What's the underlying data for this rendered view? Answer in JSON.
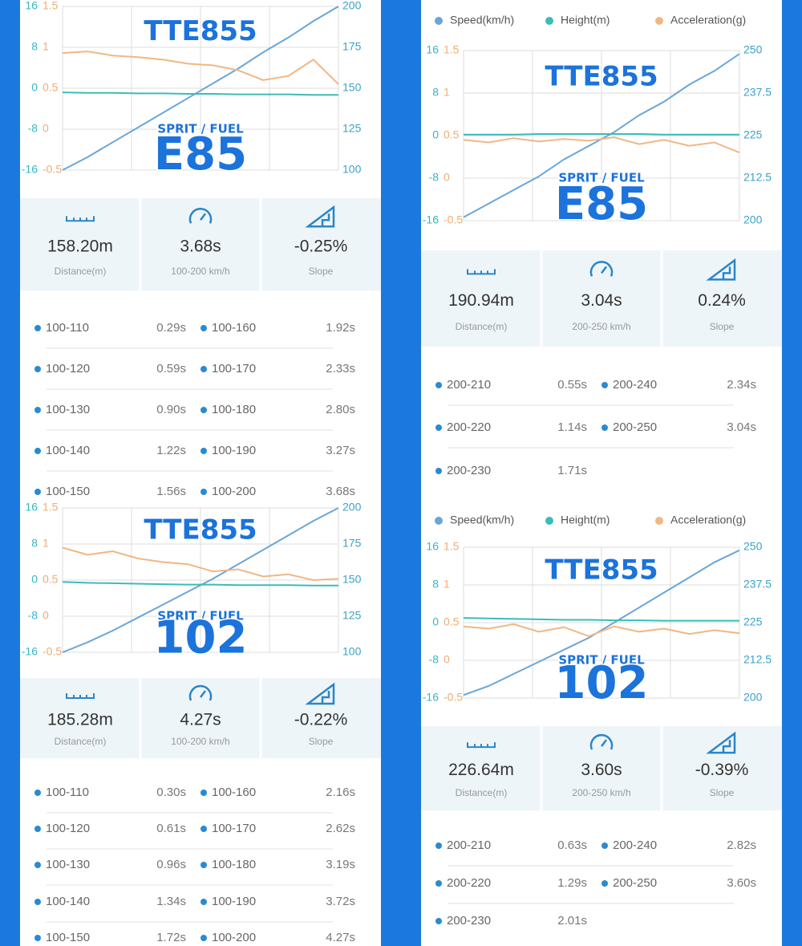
{
  "panels": [
    {
      "chart": {
        "type": "line",
        "height_lim": [
          -16,
          16
        ],
        "height_ticks": [
          16,
          8,
          0,
          -8,
          -16
        ],
        "accel_lim": [
          -0.5,
          1.5
        ],
        "accel_ticks": [
          1.5,
          1,
          0.5,
          0,
          -0.5
        ],
        "speed_lim": [
          100,
          200
        ],
        "speed_ticks": [
          200,
          175,
          150,
          125,
          100
        ],
        "series": [
          {
            "color": "#6aa6d8",
            "axis": "speed",
            "values": [
              100,
              108,
              117,
              126,
              135,
              144,
              153,
              162,
              172,
              181,
              191,
              200
            ]
          },
          {
            "color": "#3bbcb8",
            "axis": "height",
            "values": [
              -0.8,
              -0.9,
              -0.9,
              -1,
              -1,
              -1.1,
              -1.1,
              -1.2,
              -1.2,
              -1.2,
              -1.3,
              -1.3
            ]
          },
          {
            "color": "#f0b784",
            "axis": "accel",
            "values": [
              0.93,
              0.95,
              0.9,
              0.88,
              0.85,
              0.8,
              0.78,
              0.72,
              0.6,
              0.65,
              0.85,
              0.55
            ]
          }
        ]
      },
      "overlay": {
        "model": "TTE855",
        "fuel_label": "SPRIT / FUEL",
        "fuel": "E85"
      },
      "stats": [
        {
          "value": "158.20m",
          "label": "Distance(m)"
        },
        {
          "value": "3.68s",
          "label": "100-200 km/h"
        },
        {
          "value": "-0.25%",
          "label": "Slope"
        }
      ],
      "splits": [
        [
          "100-110",
          "0.29s"
        ],
        [
          "100-120",
          "0.59s"
        ],
        [
          "100-130",
          "0.90s"
        ],
        [
          "100-140",
          "1.22s"
        ],
        [
          "100-150",
          "1.56s"
        ],
        [
          "100-160",
          "1.92s"
        ],
        [
          "100-170",
          "2.33s"
        ],
        [
          "100-180",
          "2.80s"
        ],
        [
          "100-190",
          "3.27s"
        ],
        [
          "100-200",
          "3.68s"
        ]
      ]
    },
    {
      "legend": [
        "Speed(km/h)",
        "Height(m)",
        "Acceleration(g)"
      ],
      "chart": {
        "type": "line",
        "height_lim": [
          -16,
          16
        ],
        "height_ticks": [
          16,
          8,
          0,
          -8,
          -16
        ],
        "accel_lim": [
          -0.5,
          1.5
        ],
        "accel_ticks": [
          1.5,
          1,
          0.5,
          0,
          -0.5
        ],
        "speed_lim": [
          200,
          250
        ],
        "speed_ticks": [
          250,
          237.5,
          225,
          212.5,
          200
        ],
        "series": [
          {
            "color": "#6aa6d8",
            "axis": "speed",
            "values": [
              201,
              205,
              209,
              213,
              218,
              222,
              226,
              231,
              235,
              240,
              244,
              249
            ]
          },
          {
            "color": "#3bbcb8",
            "axis": "height",
            "values": [
              0.2,
              0.2,
              0.2,
              0.3,
              0.3,
              0.3,
              0.3,
              0.3,
              0.2,
              0.2,
              0.2,
              0.2
            ]
          },
          {
            "color": "#f0b784",
            "axis": "accel",
            "values": [
              0.45,
              0.42,
              0.47,
              0.43,
              0.46,
              0.44,
              0.48,
              0.4,
              0.45,
              0.38,
              0.42,
              0.3
            ]
          }
        ]
      },
      "overlay": {
        "model": "TTE855",
        "fuel_label": "SPRIT / FUEL",
        "fuel": "E85"
      },
      "stats": [
        {
          "value": "190.94m",
          "label": "Distance(m)"
        },
        {
          "value": "3.04s",
          "label": "200-250 km/h"
        },
        {
          "value": "0.24%",
          "label": "Slope"
        }
      ],
      "splits": [
        [
          "200-210",
          "0.55s"
        ],
        [
          "200-220",
          "1.14s"
        ],
        [
          "200-230",
          "1.71s"
        ],
        [
          "200-240",
          "2.34s"
        ],
        [
          "200-250",
          "3.04s"
        ]
      ]
    },
    {
      "chart": {
        "type": "line",
        "height_lim": [
          -16,
          16
        ],
        "height_ticks": [
          16,
          8,
          0,
          -8,
          -16
        ],
        "accel_lim": [
          -0.5,
          1.5
        ],
        "accel_ticks": [
          1.5,
          1,
          0.5,
          0,
          -0.5
        ],
        "speed_lim": [
          100,
          200
        ],
        "speed_ticks": [
          200,
          175,
          150,
          125,
          100
        ],
        "series": [
          {
            "color": "#6aa6d8",
            "axis": "speed",
            "values": [
              100,
              107,
              115,
              124,
              133,
              142,
              151,
              161,
              171,
              181,
              191,
              200
            ]
          },
          {
            "color": "#3bbcb8",
            "axis": "height",
            "values": [
              -0.4,
              -0.6,
              -0.7,
              -0.8,
              -0.9,
              -1,
              -1,
              -1.1,
              -1.1,
              -1.1,
              -1.2,
              -1.2
            ]
          },
          {
            "color": "#f0b784",
            "axis": "accel",
            "values": [
              0.95,
              0.85,
              0.9,
              0.8,
              0.75,
              0.72,
              0.62,
              0.65,
              0.55,
              0.58,
              0.5,
              0.52
            ]
          }
        ]
      },
      "overlay": {
        "model": "TTE855",
        "fuel_label": "SPRIT / FUEL",
        "fuel": "102"
      },
      "stats": [
        {
          "value": "185.28m",
          "label": "Distance(m)"
        },
        {
          "value": "4.27s",
          "label": "100-200 km/h"
        },
        {
          "value": "-0.22%",
          "label": "Slope"
        }
      ],
      "splits": [
        [
          "100-110",
          "0.30s"
        ],
        [
          "100-120",
          "0.61s"
        ],
        [
          "100-130",
          "0.96s"
        ],
        [
          "100-140",
          "1.34s"
        ],
        [
          "100-150",
          "1.72s"
        ],
        [
          "100-160",
          "2.16s"
        ],
        [
          "100-170",
          "2.62s"
        ],
        [
          "100-180",
          "3.19s"
        ],
        [
          "100-190",
          "3.72s"
        ],
        [
          "100-200",
          "4.27s"
        ]
      ]
    },
    {
      "legend": [
        "Speed(km/h)",
        "Height(m)",
        "Acceleration(g)"
      ],
      "chart": {
        "type": "line",
        "height_lim": [
          -16,
          16
        ],
        "height_ticks": [
          16,
          8,
          0,
          -8,
          -16
        ],
        "accel_lim": [
          -0.5,
          1.5
        ],
        "accel_ticks": [
          1.5,
          1,
          0.5,
          0,
          -0.5
        ],
        "speed_lim": [
          200,
          250
        ],
        "speed_ticks": [
          250,
          237.5,
          225,
          212.5,
          200
        ],
        "series": [
          {
            "color": "#6aa6d8",
            "axis": "speed",
            "values": [
              201,
              204,
              208,
              212,
              216,
              220,
              225,
              230,
              235,
              240,
              245,
              249
            ]
          },
          {
            "color": "#3bbcb8",
            "axis": "height",
            "values": [
              1,
              0.9,
              0.8,
              0.7,
              0.6,
              0.6,
              0.5,
              0.5,
              0.4,
              0.4,
              0.4,
              0.4
            ]
          },
          {
            "color": "#f0b784",
            "axis": "accel",
            "values": [
              0.45,
              0.42,
              0.48,
              0.38,
              0.44,
              0.32,
              0.45,
              0.38,
              0.42,
              0.35,
              0.4,
              0.36
            ]
          }
        ]
      },
      "overlay": {
        "model": "TTE855",
        "fuel_label": "SPRIT / FUEL",
        "fuel": "102"
      },
      "stats": [
        {
          "value": "226.64m",
          "label": "Distance(m)"
        },
        {
          "value": "3.60s",
          "label": "200-250 km/h"
        },
        {
          "value": "-0.39%",
          "label": "Slope"
        }
      ],
      "splits": [
        [
          "200-210",
          "0.63s"
        ],
        [
          "200-220",
          "1.29s"
        ],
        [
          "200-230",
          "2.01s"
        ],
        [
          "200-240",
          "2.82s"
        ],
        [
          "200-250",
          "3.60s"
        ]
      ]
    }
  ]
}
